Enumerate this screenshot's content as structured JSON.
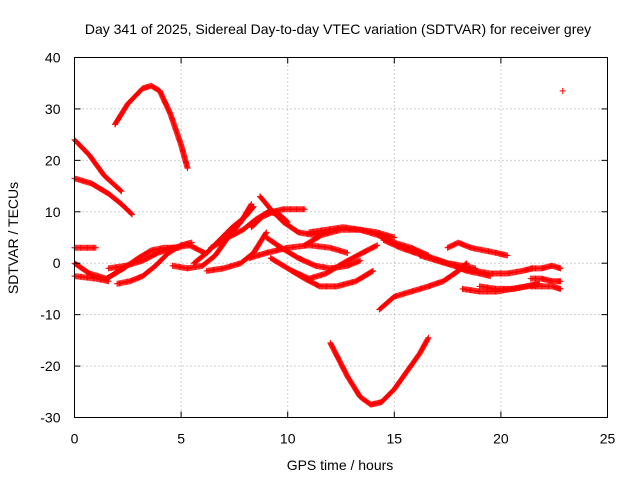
{
  "chart_data": {
    "type": "scatter",
    "title": "Day 341 of 2025, Sidereal Day-to-day VTEC variation (SDTVAR) for receiver grey",
    "xlabel": "GPS time / hours",
    "ylabel": "SDTVAR / TECUs",
    "xlim": [
      0,
      25
    ],
    "ylim": [
      -30,
      40
    ],
    "x_ticks": [
      "0",
      "5",
      "10",
      "15",
      "20",
      "25"
    ],
    "y_ticks": [
      "-30",
      "-20",
      "-10",
      "0",
      "10",
      "20",
      "30",
      "40"
    ],
    "grid": true,
    "marker": "plus",
    "color": "#ff0000",
    "series": [
      {
        "x": [
          1.9,
          2.5,
          3.2,
          3.6,
          4.0,
          4.5,
          5.0,
          5.3
        ],
        "y": [
          27,
          31,
          34,
          34.5,
          33.5,
          29,
          23,
          18.5
        ]
      },
      {
        "x": [
          0.0,
          0.7,
          1.4,
          2.2
        ],
        "y": [
          24,
          21,
          17,
          14
        ]
      },
      {
        "x": [
          0.0,
          0.8,
          1.6,
          2.2,
          2.7
        ],
        "y": [
          16.5,
          15.5,
          13.5,
          11.5,
          9.5
        ]
      },
      {
        "x": [
          0.0,
          0.5,
          1.0
        ],
        "y": [
          3,
          3,
          3
        ]
      },
      {
        "x": [
          0.0,
          0.7,
          1.5,
          2.3,
          3.0,
          3.6,
          4.2,
          4.9
        ],
        "y": [
          0,
          -2,
          -3,
          -1,
          1,
          2.5,
          3,
          3
        ]
      },
      {
        "x": [
          0.0,
          1.0,
          1.6
        ],
        "y": [
          -2.5,
          -3,
          -3.5
        ]
      },
      {
        "x": [
          2.0,
          2.6,
          3.2,
          3.8,
          4.4,
          5.0,
          5.5
        ],
        "y": [
          -4,
          -3.5,
          -2.5,
          -0.5,
          2,
          3.5,
          4
        ]
      },
      {
        "x": [
          1.6,
          2.4,
          3.2,
          3.9,
          4.6,
          5.4,
          6.1
        ],
        "y": [
          -1,
          -0.5,
          0.5,
          2,
          3,
          3.5,
          2
        ]
      },
      {
        "x": [
          4.6,
          5.3,
          6.0,
          6.6,
          7.2,
          7.8,
          8.3
        ],
        "y": [
          -0.5,
          -1,
          -0.5,
          1.5,
          5,
          8,
          11.5
        ]
      },
      {
        "x": [
          5.6,
          6.2,
          6.8,
          7.4,
          8.0,
          8.4
        ],
        "y": [
          0,
          2,
          4.5,
          7,
          9,
          11
        ]
      },
      {
        "x": [
          6.4,
          7.2,
          7.9,
          8.5,
          9.1,
          9.6,
          10.0
        ],
        "y": [
          3,
          5,
          6.5,
          8.5,
          10,
          9.5,
          8
        ]
      },
      {
        "x": [
          6.2,
          7.0,
          7.8,
          8.4,
          9.0
        ],
        "y": [
          -1.5,
          -1,
          0,
          2,
          6
        ]
      },
      {
        "x": [
          8.3,
          8.8,
          9.3,
          9.8,
          10.3,
          10.8
        ],
        "y": [
          7,
          9,
          10,
          10.5,
          10.5,
          10.5
        ]
      },
      {
        "x": [
          8.7,
          9.2,
          9.8,
          10.5,
          11.2,
          11.8
        ],
        "y": [
          13,
          10.5,
          8,
          6,
          5.5,
          6
        ]
      },
      {
        "x": [
          9.0,
          9.7,
          10.5,
          11.3,
          12.0,
          12.8,
          13.4
        ],
        "y": [
          5,
          3,
          1,
          -0.5,
          -1,
          -0.5,
          0.5
        ]
      },
      {
        "x": [
          8.2,
          9.0,
          10.0,
          11.0,
          12.0,
          12.8
        ],
        "y": [
          1,
          2,
          3,
          3.5,
          3,
          2
        ]
      },
      {
        "x": [
          9.2,
          10.0,
          10.8,
          11.5,
          12.3,
          13.2,
          14.0
        ],
        "y": [
          1,
          -1,
          -3,
          -4.5,
          -4.5,
          -3.5,
          -1.5
        ]
      },
      {
        "x": [
          10.2,
          11.0,
          11.8,
          12.6,
          13.5,
          14.2
        ],
        "y": [
          -1.5,
          -3,
          -2,
          0,
          2,
          3.5
        ]
      },
      {
        "x": [
          10.8,
          11.6,
          12.5,
          13.4,
          14.2,
          15.0,
          15.8,
          16.6
        ],
        "y": [
          3.5,
          5.5,
          6.5,
          6.5,
          5.5,
          4,
          3,
          1.5
        ]
      },
      {
        "x": [
          11.0,
          11.8,
          12.6,
          13.4,
          14.2,
          15.0
        ],
        "y": [
          6,
          6.5,
          7,
          6.5,
          6,
          5
        ]
      },
      {
        "x": [
          12.0,
          12.8,
          13.4,
          13.9,
          14.4,
          15.0,
          15.6,
          16.2,
          16.6
        ],
        "y": [
          -15.5,
          -22,
          -26,
          -27.5,
          -27,
          -24.5,
          -21,
          -17.5,
          -14.5
        ]
      },
      {
        "x": [
          14.3,
          15.0,
          15.8,
          16.6,
          17.3,
          18.0,
          18.4
        ],
        "y": [
          -9,
          -6.5,
          -5.5,
          -4.5,
          -3.5,
          -1.5,
          0
        ]
      },
      {
        "x": [
          14.5,
          15.3,
          16.0,
          16.8,
          17.5,
          18.2,
          18.8
        ],
        "y": [
          4.5,
          3,
          2,
          1,
          0,
          -0.5,
          -1
        ]
      },
      {
        "x": [
          16.2,
          17.0,
          17.8,
          18.4,
          19.0,
          19.5
        ],
        "y": [
          1.5,
          0.5,
          -0.5,
          -1.5,
          -2,
          -2.5
        ]
      },
      {
        "x": [
          17.5,
          18.0,
          18.6,
          19.2,
          19.8,
          20.3
        ],
        "y": [
          3,
          4,
          3,
          2.5,
          2,
          1.5
        ]
      },
      {
        "x": [
          18.0,
          18.8,
          19.5,
          20.3,
          21.0,
          21.5
        ],
        "y": [
          -1,
          -1.5,
          -2,
          -2,
          -1.5,
          -1
        ]
      },
      {
        "x": [
          18.2,
          19.0,
          19.8,
          20.5,
          21.2,
          21.8
        ],
        "y": [
          -5,
          -5.5,
          -5.5,
          -5,
          -4.5,
          -4
        ]
      },
      {
        "x": [
          19.0,
          19.8,
          20.6,
          21.2,
          21.8
        ],
        "y": [
          -4.5,
          -5,
          -5,
          -4.5,
          -4
        ]
      },
      {
        "x": [
          21.4,
          21.9,
          22.4,
          22.8
        ],
        "y": [
          -1,
          -1,
          -0.5,
          -1
        ]
      },
      {
        "x": [
          21.4,
          21.9,
          22.4,
          22.8
        ],
        "y": [
          -3,
          -3,
          -3.5,
          -3.5
        ]
      },
      {
        "x": [
          21.4,
          21.9,
          22.4,
          22.8
        ],
        "y": [
          -4.5,
          -4.5,
          -4.5,
          -5
        ]
      },
      {
        "x": [
          22.9
        ],
        "y": [
          33.5
        ]
      }
    ]
  }
}
